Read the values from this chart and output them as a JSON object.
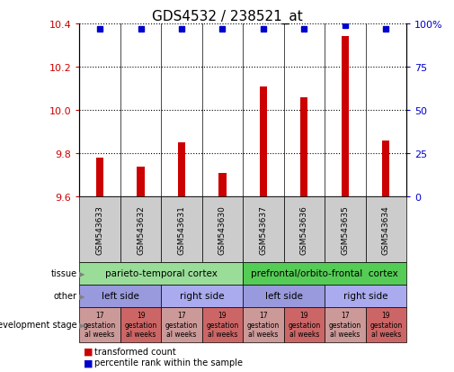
{
  "title": "GDS4532 / 238521_at",
  "samples": [
    "GSM543633",
    "GSM543632",
    "GSM543631",
    "GSM543630",
    "GSM543637",
    "GSM543636",
    "GSM543635",
    "GSM543634"
  ],
  "bar_values": [
    9.78,
    9.74,
    9.85,
    9.71,
    10.11,
    10.06,
    10.34,
    9.86
  ],
  "percentile_values": [
    97,
    97,
    97,
    97,
    97,
    97,
    99,
    97
  ],
  "ylim_left": [
    9.6,
    10.4
  ],
  "ylim_right": [
    0,
    100
  ],
  "yticks_left": [
    9.6,
    9.8,
    10.0,
    10.2,
    10.4
  ],
  "yticks_right": [
    0,
    25,
    50,
    75,
    100
  ],
  "ytick_labels_right": [
    "0",
    "25",
    "50",
    "75",
    "100%"
  ],
  "bar_color": "#cc0000",
  "percentile_color": "#0000cc",
  "sample_label_bg": "#cccccc",
  "tissue_row": {
    "groups": [
      {
        "label": "parieto-temporal cortex",
        "start": 0,
        "end": 4,
        "color": "#99dd99"
      },
      {
        "label": "prefrontal/orbito-frontal  cortex",
        "start": 4,
        "end": 8,
        "color": "#55cc55"
      }
    ]
  },
  "other_row": {
    "groups": [
      {
        "label": "left side",
        "start": 0,
        "end": 2,
        "color": "#9999dd"
      },
      {
        "label": "right side",
        "start": 2,
        "end": 4,
        "color": "#aaaaee"
      },
      {
        "label": "left side",
        "start": 4,
        "end": 6,
        "color": "#9999dd"
      },
      {
        "label": "right side",
        "start": 6,
        "end": 8,
        "color": "#aaaaee"
      }
    ]
  },
  "dev_stage_row": {
    "groups": [
      {
        "label": "17\ngestation\nal weeks",
        "start": 0,
        "end": 1,
        "color": "#cc9999"
      },
      {
        "label": "19\ngestation\nal weeks",
        "start": 1,
        "end": 2,
        "color": "#cc6666"
      },
      {
        "label": "17\ngestation\nal weeks",
        "start": 2,
        "end": 3,
        "color": "#cc9999"
      },
      {
        "label": "19\ngestation\nal weeks",
        "start": 3,
        "end": 4,
        "color": "#cc6666"
      },
      {
        "label": "17\ngestation\nal weeks",
        "start": 4,
        "end": 5,
        "color": "#cc9999"
      },
      {
        "label": "19\ngestation\nal weeks",
        "start": 5,
        "end": 6,
        "color": "#cc6666"
      },
      {
        "label": "17\ngestation\nal weeks",
        "start": 6,
        "end": 7,
        "color": "#cc9999"
      },
      {
        "label": "19\ngestation\nal weeks",
        "start": 7,
        "end": 8,
        "color": "#cc6666"
      }
    ]
  },
  "legend_items": [
    {
      "label": "transformed count",
      "color": "#cc0000"
    },
    {
      "label": "percentile rank within the sample",
      "color": "#0000cc"
    }
  ]
}
